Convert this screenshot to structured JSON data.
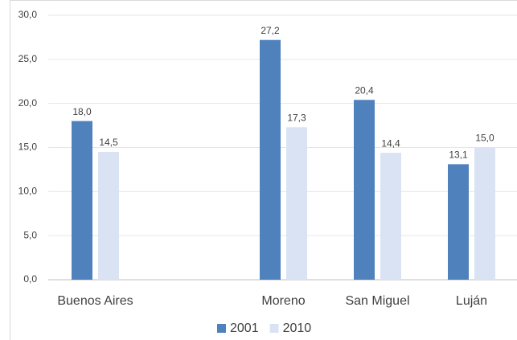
{
  "chart_data": {
    "type": "bar",
    "categories": [
      "Buenos Aires",
      null,
      "Moreno",
      "San Miguel",
      "Luján"
    ],
    "series": [
      {
        "name": "2001",
        "color": "#4f81bd",
        "values": [
          18.0,
          null,
          27.2,
          20.4,
          13.1
        ],
        "value_labels": [
          "18,0",
          null,
          "27,2",
          "20,4",
          "13,1"
        ]
      },
      {
        "name": "2010",
        "color": "#dae3f3",
        "values": [
          14.5,
          null,
          17.3,
          14.4,
          15.0
        ],
        "value_labels": [
          "14,5",
          null,
          "17,3",
          "14,4",
          "15,0"
        ]
      }
    ],
    "ylim": [
      0,
      30
    ],
    "yticks": [
      {
        "value": 0,
        "label": "0,0"
      },
      {
        "value": 5,
        "label": "5,0"
      },
      {
        "value": 10,
        "label": "10,0"
      },
      {
        "value": 15,
        "label": "15,0"
      },
      {
        "value": 20,
        "label": "20,0"
      },
      {
        "value": 25,
        "label": "25,0"
      },
      {
        "value": 30,
        "label": "30,0"
      }
    ],
    "grid": true,
    "legend": "bottom"
  }
}
